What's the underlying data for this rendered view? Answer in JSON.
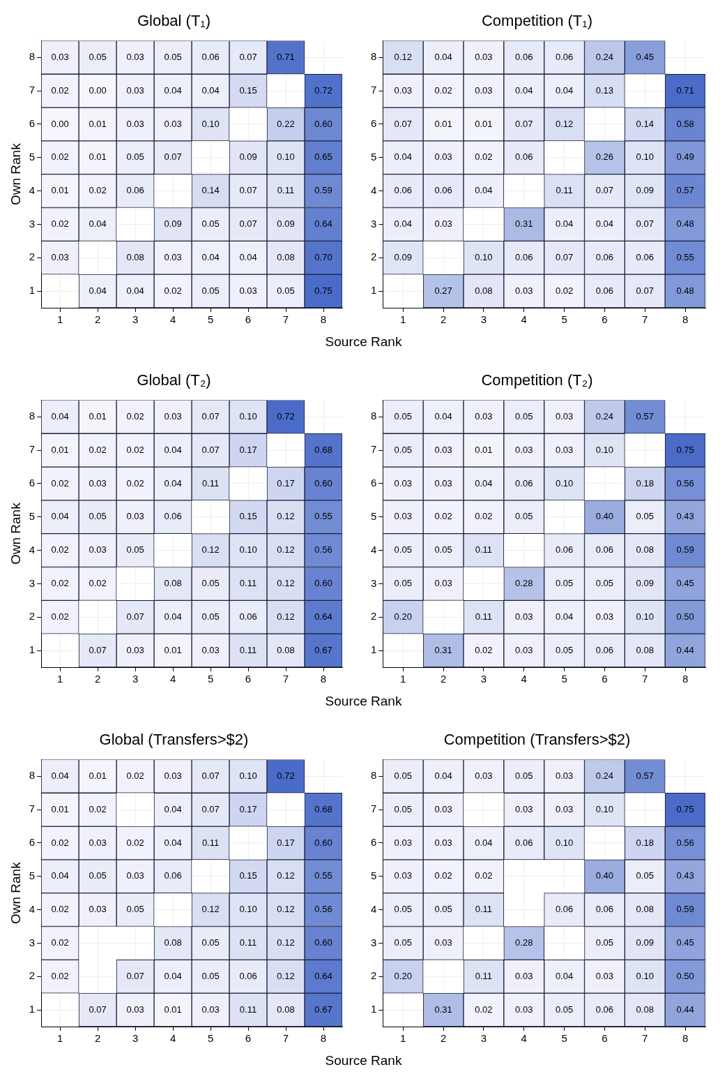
{
  "chart_data": [
    {
      "type": "heatmap",
      "title": "Global (T₁)",
      "xlabel": "Source Rank",
      "ylabel": "Own Rank",
      "color": "#4a6cc8",
      "grid": true,
      "categories": [
        "1",
        "2",
        "3",
        "4",
        "5",
        "6",
        "7",
        "8"
      ],
      "y_categories": [
        "8",
        "7",
        "6",
        "5",
        "4",
        "3",
        "2",
        "1"
      ],
      "cells": [
        [
          0.03,
          0.05,
          0.03,
          0.05,
          0.06,
          0.07,
          0.71,
          null
        ],
        [
          0.02,
          0.0,
          0.03,
          0.04,
          0.04,
          0.15,
          null,
          0.72
        ],
        [
          0.0,
          0.01,
          0.03,
          0.03,
          0.1,
          null,
          0.22,
          0.6
        ],
        [
          0.02,
          0.01,
          0.05,
          0.07,
          null,
          0.09,
          0.1,
          0.65
        ],
        [
          0.01,
          0.02,
          0.06,
          null,
          0.14,
          0.07,
          0.11,
          0.59
        ],
        [
          0.02,
          0.04,
          null,
          0.09,
          0.05,
          0.07,
          0.09,
          0.64
        ],
        [
          0.03,
          null,
          0.08,
          0.03,
          0.04,
          0.04,
          0.08,
          0.7
        ],
        [
          null,
          0.04,
          0.04,
          0.02,
          0.05,
          0.03,
          0.05,
          0.75
        ]
      ],
      "cell_labels": [
        [
          "0.03",
          "0.05",
          "0.03",
          "0.05",
          "0.06",
          "0.07",
          "0.71",
          null
        ],
        [
          "0.02",
          "0.00",
          "0.03",
          "0.04",
          "0.04",
          "0.15",
          null,
          "0.72"
        ],
        [
          "0.00",
          "0.01",
          "0.03",
          "0.03",
          "0.10",
          null,
          "0.22",
          "0.60"
        ],
        [
          "0.02",
          "0.01",
          "0.05",
          "0.07",
          null,
          "0.09",
          "0.10",
          "0.65"
        ],
        [
          "0.01",
          "0.02",
          "0.06",
          null,
          "0.14",
          "0.07",
          "0.11",
          "0.59"
        ],
        [
          "0.02",
          "0.04",
          null,
          "0.09",
          "0.05",
          "0.07",
          "0.09",
          "0.64"
        ],
        [
          "0.03",
          null,
          "0.08",
          "0.03",
          "0.04",
          "0.04",
          "0.08",
          "0.70"
        ],
        [
          null,
          "0.04",
          "0.04",
          "0.02",
          "0.05",
          "0.03",
          "0.05",
          "0.75"
        ]
      ]
    },
    {
      "type": "heatmap",
      "title": "Competition (T₁)",
      "color": "#4a6cc8",
      "grid": true,
      "categories": [
        "1",
        "2",
        "3",
        "4",
        "5",
        "6",
        "7",
        "8"
      ],
      "y_categories": [
        "8",
        "7",
        "6",
        "5",
        "4",
        "3",
        "2",
        "1"
      ],
      "cells": [
        [
          0.12,
          0.04,
          0.03,
          0.06,
          0.06,
          0.24,
          0.45,
          null
        ],
        [
          0.03,
          0.02,
          0.03,
          0.04,
          0.04,
          0.13,
          null,
          0.71
        ],
        [
          0.07,
          0.01,
          0.01,
          0.07,
          0.12,
          null,
          0.14,
          0.58
        ],
        [
          0.04,
          0.03,
          0.02,
          0.06,
          null,
          0.26,
          0.1,
          0.49
        ],
        [
          0.06,
          0.06,
          0.04,
          null,
          0.11,
          0.07,
          0.09,
          0.57
        ],
        [
          0.04,
          0.03,
          null,
          0.31,
          0.04,
          0.04,
          0.07,
          0.48
        ],
        [
          0.09,
          null,
          0.1,
          0.06,
          0.07,
          0.06,
          0.06,
          0.55
        ],
        [
          null,
          0.27,
          0.08,
          0.03,
          0.02,
          0.06,
          0.07,
          0.48
        ]
      ],
      "cell_labels": [
        [
          "0.12",
          "0.04",
          "0.03",
          "0.06",
          "0.06",
          "0.24",
          "0.45",
          null
        ],
        [
          "0.03",
          "0.02",
          "0.03",
          "0.04",
          "0.04",
          "0.13",
          null,
          "0.71"
        ],
        [
          "0.07",
          "0.01",
          "0.01",
          "0.07",
          "0.12",
          null,
          "0.14",
          "0.58"
        ],
        [
          "0.04",
          "0.03",
          "0.02",
          "0.06",
          null,
          "0.26",
          "0.10",
          "0.49"
        ],
        [
          "0.06",
          "0.06",
          "0.04",
          null,
          "0.11",
          "0.07",
          "0.09",
          "0.57"
        ],
        [
          "0.04",
          "0.03",
          null,
          "0.31",
          "0.04",
          "0.04",
          "0.07",
          "0.48"
        ],
        [
          "0.09",
          null,
          "0.10",
          "0.06",
          "0.07",
          "0.06",
          "0.06",
          "0.55"
        ],
        [
          null,
          "0.27",
          "0.08",
          "0.03",
          "0.02",
          "0.06",
          "0.07",
          "0.48"
        ]
      ]
    },
    {
      "type": "heatmap",
      "title": "Global (T₂)",
      "xlabel": "Source Rank",
      "ylabel": "Own Rank",
      "color": "#4a6cc8",
      "grid": true,
      "categories": [
        "1",
        "2",
        "3",
        "4",
        "5",
        "6",
        "7",
        "8"
      ],
      "y_categories": [
        "8",
        "7",
        "6",
        "5",
        "4",
        "3",
        "2",
        "1"
      ],
      "cells": [
        [
          0.04,
          0.01,
          0.02,
          0.03,
          0.07,
          0.1,
          0.72,
          null
        ],
        [
          0.01,
          0.02,
          0.02,
          0.04,
          0.07,
          0.17,
          null,
          0.68
        ],
        [
          0.02,
          0.03,
          0.02,
          0.04,
          0.11,
          null,
          0.17,
          0.6
        ],
        [
          0.04,
          0.05,
          0.03,
          0.06,
          null,
          0.15,
          0.12,
          0.55
        ],
        [
          0.02,
          0.03,
          0.05,
          null,
          0.12,
          0.1,
          0.12,
          0.56
        ],
        [
          0.02,
          0.02,
          null,
          0.08,
          0.05,
          0.11,
          0.12,
          0.6
        ],
        [
          0.02,
          null,
          0.07,
          0.04,
          0.05,
          0.06,
          0.12,
          0.64
        ],
        [
          null,
          0.07,
          0.03,
          0.01,
          0.03,
          0.11,
          0.08,
          0.67
        ]
      ],
      "cell_labels": [
        [
          "0.04",
          "0.01",
          "0.02",
          "0.03",
          "0.07",
          "0.10",
          "0.72",
          null
        ],
        [
          "0.01",
          "0.02",
          "0.02",
          "0.04",
          "0.07",
          "0.17",
          null,
          "0.68"
        ],
        [
          "0.02",
          "0.03",
          "0.02",
          "0.04",
          "0.11",
          null,
          "0.17",
          "0.60"
        ],
        [
          "0.04",
          "0.05",
          "0.03",
          "0.06",
          null,
          "0.15",
          "0.12",
          "0.55"
        ],
        [
          "0.02",
          "0.03",
          "0.05",
          null,
          "0.12",
          "0.10",
          "0.12",
          "0.56"
        ],
        [
          "0.02",
          "0.02",
          null,
          "0.08",
          "0.05",
          "0.11",
          "0.12",
          "0.60"
        ],
        [
          "0.02",
          null,
          "0.07",
          "0.04",
          "0.05",
          "0.06",
          "0.12",
          "0.64"
        ],
        [
          null,
          "0.07",
          "0.03",
          "0.01",
          "0.03",
          "0.11",
          "0.08",
          "0.67"
        ]
      ]
    },
    {
      "type": "heatmap",
      "title": "Competition (T₂)",
      "color": "#4a6cc8",
      "grid": true,
      "categories": [
        "1",
        "2",
        "3",
        "4",
        "5",
        "6",
        "7",
        "8"
      ],
      "y_categories": [
        "8",
        "7",
        "6",
        "5",
        "4",
        "3",
        "2",
        "1"
      ],
      "cells": [
        [
          0.05,
          0.04,
          0.03,
          0.05,
          0.03,
          0.24,
          0.57,
          null
        ],
        [
          0.05,
          0.03,
          0.01,
          0.03,
          0.03,
          0.1,
          null,
          0.75
        ],
        [
          0.03,
          0.03,
          0.04,
          0.06,
          0.1,
          null,
          0.18,
          0.56
        ],
        [
          0.03,
          0.02,
          0.02,
          0.05,
          null,
          0.4,
          0.05,
          0.43
        ],
        [
          0.05,
          0.05,
          0.11,
          null,
          0.06,
          0.06,
          0.08,
          0.59
        ],
        [
          0.05,
          0.03,
          null,
          0.28,
          0.05,
          0.05,
          0.09,
          0.45
        ],
        [
          0.2,
          null,
          0.11,
          0.03,
          0.04,
          0.03,
          0.1,
          0.5
        ],
        [
          null,
          0.31,
          0.02,
          0.03,
          0.05,
          0.06,
          0.08,
          0.44
        ]
      ],
      "cell_labels": [
        [
          "0.05",
          "0.04",
          "0.03",
          "0.05",
          "0.03",
          "0.24",
          "0.57",
          null
        ],
        [
          "0.05",
          "0.03",
          "0.01",
          "0.03",
          "0.03",
          "0.10",
          null,
          "0.75"
        ],
        [
          "0.03",
          "0.03",
          "0.04",
          "0.06",
          "0.10",
          null,
          "0.18",
          "0.56"
        ],
        [
          "0.03",
          "0.02",
          "0.02",
          "0.05",
          null,
          "0.40",
          "0.05",
          "0.43"
        ],
        [
          "0.05",
          "0.05",
          "0.11",
          null,
          "0.06",
          "0.06",
          "0.08",
          "0.59"
        ],
        [
          "0.05",
          "0.03",
          null,
          "0.28",
          "0.05",
          "0.05",
          "0.09",
          "0.45"
        ],
        [
          "0.20",
          null,
          "0.11",
          "0.03",
          "0.04",
          "0.03",
          "0.10",
          "0.50"
        ],
        [
          null,
          "0.31",
          "0.02",
          "0.03",
          "0.05",
          "0.06",
          "0.08",
          "0.44"
        ]
      ]
    },
    {
      "type": "heatmap",
      "title": "Global (Transfers>$2)",
      "xlabel": "Source Rank",
      "ylabel": "Own Rank",
      "color": "#4a6cc8",
      "grid": true,
      "categories": [
        "1",
        "2",
        "3",
        "4",
        "5",
        "6",
        "7",
        "8"
      ],
      "y_categories": [
        "8",
        "7",
        "6",
        "5",
        "4",
        "3",
        "2",
        "1"
      ],
      "cells": [
        [
          0.04,
          0.01,
          0.02,
          0.03,
          0.07,
          0.1,
          0.72,
          null
        ],
        [
          0.01,
          0.02,
          null,
          0.04,
          0.07,
          0.17,
          null,
          0.68
        ],
        [
          0.02,
          0.03,
          0.02,
          0.04,
          0.11,
          null,
          0.17,
          0.6
        ],
        [
          0.04,
          0.05,
          0.03,
          0.06,
          null,
          0.15,
          0.12,
          0.55
        ],
        [
          0.02,
          0.03,
          0.05,
          null,
          0.12,
          0.1,
          0.12,
          0.56
        ],
        [
          0.02,
          null,
          null,
          0.08,
          0.05,
          0.11,
          0.12,
          0.6
        ],
        [
          0.02,
          null,
          0.07,
          0.04,
          0.05,
          0.06,
          0.12,
          0.64
        ],
        [
          null,
          0.07,
          0.03,
          0.01,
          0.03,
          0.11,
          0.08,
          0.67
        ]
      ],
      "cell_labels": [
        [
          "0.04",
          "0.01",
          "0.02",
          "0.03",
          "0.07",
          "0.10",
          "0.72",
          null
        ],
        [
          "0.01",
          "0.02",
          null,
          "0.04",
          "0.07",
          "0.17",
          null,
          "0.68"
        ],
        [
          "0.02",
          "0.03",
          "0.02",
          "0.04",
          "0.11",
          null,
          "0.17",
          "0.60"
        ],
        [
          "0.04",
          "0.05",
          "0.03",
          "0.06",
          null,
          "0.15",
          "0.12",
          "0.55"
        ],
        [
          "0.02",
          "0.03",
          "0.05",
          null,
          "0.12",
          "0.10",
          "0.12",
          "0.56"
        ],
        [
          "0.02",
          null,
          null,
          "0.08",
          "0.05",
          "0.11",
          "0.12",
          "0.60"
        ],
        [
          "0.02",
          null,
          "0.07",
          "0.04",
          "0.05",
          "0.06",
          "0.12",
          "0.64"
        ],
        [
          null,
          "0.07",
          "0.03",
          "0.01",
          "0.03",
          "0.11",
          "0.08",
          "0.67"
        ]
      ]
    },
    {
      "type": "heatmap",
      "title": "Competition (Transfers>$2)",
      "color": "#4a6cc8",
      "grid": true,
      "categories": [
        "1",
        "2",
        "3",
        "4",
        "5",
        "6",
        "7",
        "8"
      ],
      "y_categories": [
        "8",
        "7",
        "6",
        "5",
        "4",
        "3",
        "2",
        "1"
      ],
      "cells": [
        [
          0.05,
          0.04,
          0.03,
          0.05,
          0.03,
          0.24,
          0.57,
          null
        ],
        [
          0.05,
          0.03,
          null,
          0.03,
          0.03,
          0.1,
          null,
          0.75
        ],
        [
          0.03,
          0.03,
          0.04,
          0.06,
          0.1,
          null,
          0.18,
          0.56
        ],
        [
          0.03,
          0.02,
          0.02,
          null,
          null,
          0.4,
          0.05,
          0.43
        ],
        [
          0.05,
          0.05,
          0.11,
          null,
          0.06,
          0.06,
          0.08,
          0.59
        ],
        [
          0.05,
          0.03,
          null,
          0.28,
          null,
          0.05,
          0.09,
          0.45
        ],
        [
          0.2,
          null,
          0.11,
          0.03,
          0.04,
          0.03,
          0.1,
          0.5
        ],
        [
          null,
          0.31,
          0.02,
          0.03,
          0.05,
          0.06,
          0.08,
          0.44
        ]
      ],
      "cell_labels": [
        [
          "0.05",
          "0.04",
          "0.03",
          "0.05",
          "0.03",
          "0.24",
          "0.57",
          null
        ],
        [
          "0.05",
          "0.03",
          null,
          "0.03",
          "0.03",
          "0.10",
          null,
          "0.75"
        ],
        [
          "0.03",
          "0.03",
          "0.04",
          "0.06",
          "0.10",
          null,
          "0.18",
          "0.56"
        ],
        [
          "0.03",
          "0.02",
          "0.02",
          null,
          null,
          "0.40",
          "0.05",
          "0.43"
        ],
        [
          "0.05",
          "0.05",
          "0.11",
          null,
          "0.06",
          "0.06",
          "0.08",
          "0.59"
        ],
        [
          "0.05",
          "0.03",
          null,
          "0.28",
          null,
          "0.05",
          "0.09",
          "0.45"
        ],
        [
          "0.20",
          null,
          "0.11",
          "0.03",
          "0.04",
          "0.03",
          "0.10",
          "0.50"
        ],
        [
          null,
          "0.31",
          "0.02",
          "0.03",
          "0.05",
          "0.06",
          "0.08",
          "0.44"
        ]
      ]
    }
  ]
}
